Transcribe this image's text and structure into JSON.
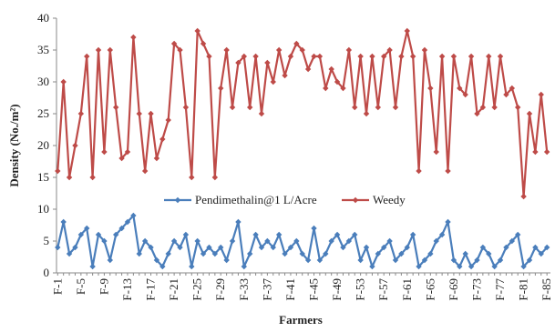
{
  "chart_data": {
    "type": "line",
    "xlabel": "Farmers",
    "ylabel": "Density (No./m²)",
    "ylim": [
      0,
      40
    ],
    "yticks": [
      0,
      5,
      10,
      15,
      20,
      25,
      30,
      35,
      40
    ],
    "grid": false,
    "legend_position": "center",
    "categories": [
      "F-1",
      "F-2",
      "F-3",
      "F-4",
      "F-5",
      "F-6",
      "F-7",
      "F-8",
      "F-9",
      "F-10",
      "F-11",
      "F-12",
      "F-13",
      "F-14",
      "F-15",
      "F-16",
      "F-17",
      "F-18",
      "F-19",
      "F-20",
      "F-21",
      "F-22",
      "F-23",
      "F-24",
      "F-25",
      "F-26",
      "F-27",
      "F-28",
      "F-29",
      "F-30",
      "F-31",
      "F-32",
      "F-33",
      "F-34",
      "F-35",
      "F-36",
      "F-37",
      "F-38",
      "F-39",
      "F-40",
      "F-41",
      "F-42",
      "F-43",
      "F-44",
      "F-45",
      "F-46",
      "F-47",
      "F-48",
      "F-49",
      "F-50",
      "F-51",
      "F-52",
      "F-53",
      "F-54",
      "F-55",
      "F-56",
      "F-57",
      "F-58",
      "F-59",
      "F-60",
      "F-61",
      "F-62",
      "F-63",
      "F-64",
      "F-65",
      "F-66",
      "F-67",
      "F-68",
      "F-69",
      "F-70",
      "F-71",
      "F-72",
      "F-73",
      "F-74",
      "F-75",
      "F-76",
      "F-77",
      "F-78",
      "F-79",
      "F-80",
      "F-81",
      "F-82",
      "F-83",
      "F-84",
      "F-85"
    ],
    "tick_labels": [
      "F-1",
      "F-5",
      "F-9",
      "F-13",
      "F-17",
      "F-21",
      "F-25",
      "F-29",
      "F-33",
      "F-37",
      "F-41",
      "F-45",
      "F-49",
      "F-53",
      "F-57",
      "F-61",
      "F-65",
      "F-69",
      "F-73",
      "F-77",
      "F-81",
      "F-85"
    ],
    "series": [
      {
        "name": "Pendimethalin@1 L/Acre",
        "color": "#4a7ebb",
        "marker": "diamond",
        "values": [
          4,
          8,
          3,
          4,
          6,
          7,
          1,
          6,
          5,
          2,
          6,
          7,
          8,
          9,
          3,
          5,
          4,
          2,
          1,
          3,
          5,
          4,
          6,
          1,
          5,
          3,
          4,
          3,
          4,
          2,
          5,
          8,
          1,
          3,
          6,
          4,
          5,
          4,
          6,
          3,
          4,
          5,
          3,
          2,
          7,
          2,
          3,
          5,
          6,
          4,
          5,
          6,
          2,
          4,
          1,
          3,
          4,
          5,
          2,
          3,
          4,
          6,
          1,
          2,
          3,
          5,
          6,
          8,
          2,
          1,
          3,
          1,
          2,
          4,
          3,
          1,
          2,
          4,
          5,
          6,
          1,
          2,
          4,
          3,
          4
        ]
      },
      {
        "name": "Weedy",
        "color": "#be4b48",
        "marker": "diamond",
        "values": [
          16,
          30,
          15,
          20,
          25,
          34,
          15,
          35,
          19,
          35,
          26,
          18,
          19,
          37,
          25,
          16,
          25,
          18,
          21,
          24,
          36,
          35,
          26,
          15,
          38,
          36,
          34,
          15,
          29,
          35,
          26,
          33,
          34,
          26,
          34,
          25,
          33,
          30,
          35,
          31,
          34,
          36,
          35,
          32,
          34,
          34,
          29,
          32,
          30,
          29,
          35,
          26,
          34,
          25,
          34,
          26,
          34,
          35,
          26,
          34,
          38,
          34,
          16,
          35,
          29,
          19,
          34,
          16,
          34,
          29,
          28,
          34,
          25,
          26,
          34,
          26,
          34,
          28,
          29,
          26,
          12,
          25,
          19,
          28,
          19
        ]
      }
    ]
  }
}
